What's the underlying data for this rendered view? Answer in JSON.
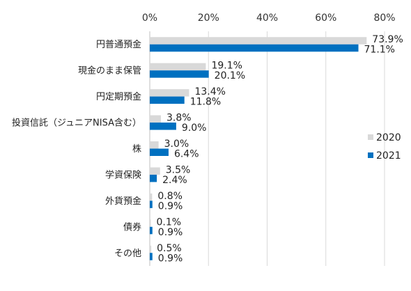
{
  "chart_data": {
    "type": "bar",
    "orientation": "horizontal",
    "title": "",
    "xlabel": "",
    "ylabel": "",
    "xlim": [
      0,
      80
    ],
    "x_ticks": [
      0,
      20,
      40,
      60,
      80
    ],
    "x_tick_labels": [
      "0%",
      "20%",
      "40%",
      "60%",
      "80%"
    ],
    "x_axis_position": "top",
    "grid": true,
    "legend_position": "right",
    "categories": [
      "円普通預金",
      "現金のまま保管",
      "円定期預金",
      "投資信託（ジュニアNISA含む）",
      "株",
      "学資保険",
      "外貨預金",
      "債券",
      "その他"
    ],
    "series": [
      {
        "name": "2020",
        "color": "#d9d9d9",
        "values": [
          73.9,
          19.1,
          13.4,
          3.8,
          3.0,
          3.5,
          0.8,
          0.1,
          0.5
        ],
        "labels": [
          "73.9%",
          "19.1%",
          "13.4%",
          "3.8%",
          "3.0%",
          "3.5%",
          "0.8%",
          "0.1%",
          "0.5%"
        ]
      },
      {
        "name": "2021",
        "color": "#0070c0",
        "values": [
          71.1,
          20.1,
          11.8,
          9.0,
          6.4,
          2.4,
          0.9,
          0.9,
          0.9
        ],
        "labels": [
          "71.1%",
          "20.1%",
          "11.8%",
          "9.0%",
          "6.4%",
          "2.4%",
          "0.9%",
          "0.9%",
          "0.9%"
        ]
      }
    ]
  }
}
